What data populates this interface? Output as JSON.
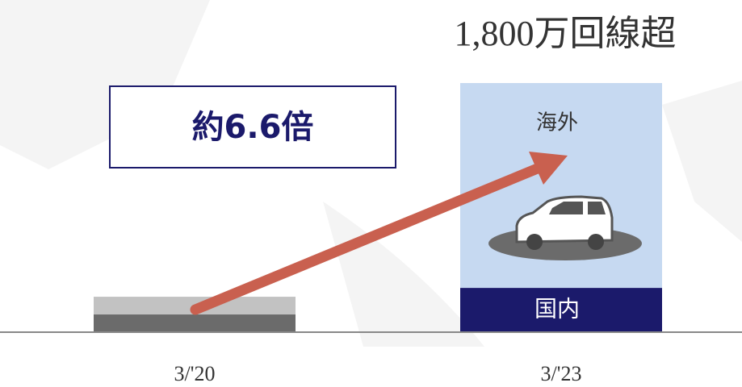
{
  "chart_data": {
    "type": "bar",
    "stacked": true,
    "title": "1,800万回線超",
    "annotation": "約6.6倍",
    "categories": [
      "3/'20",
      "3/'23"
    ],
    "series": [
      {
        "name": "国内",
        "colors": [
          "#6b6b6b",
          "#1b1a6b"
        ],
        "values": [
          128,
          320
        ]
      },
      {
        "name": "海外",
        "colors": [
          "#c2c2c2",
          "#c6d9f1"
        ],
        "values": [
          128,
          1480
        ]
      }
    ],
    "ylim": [
      0,
      1800
    ]
  }
}
